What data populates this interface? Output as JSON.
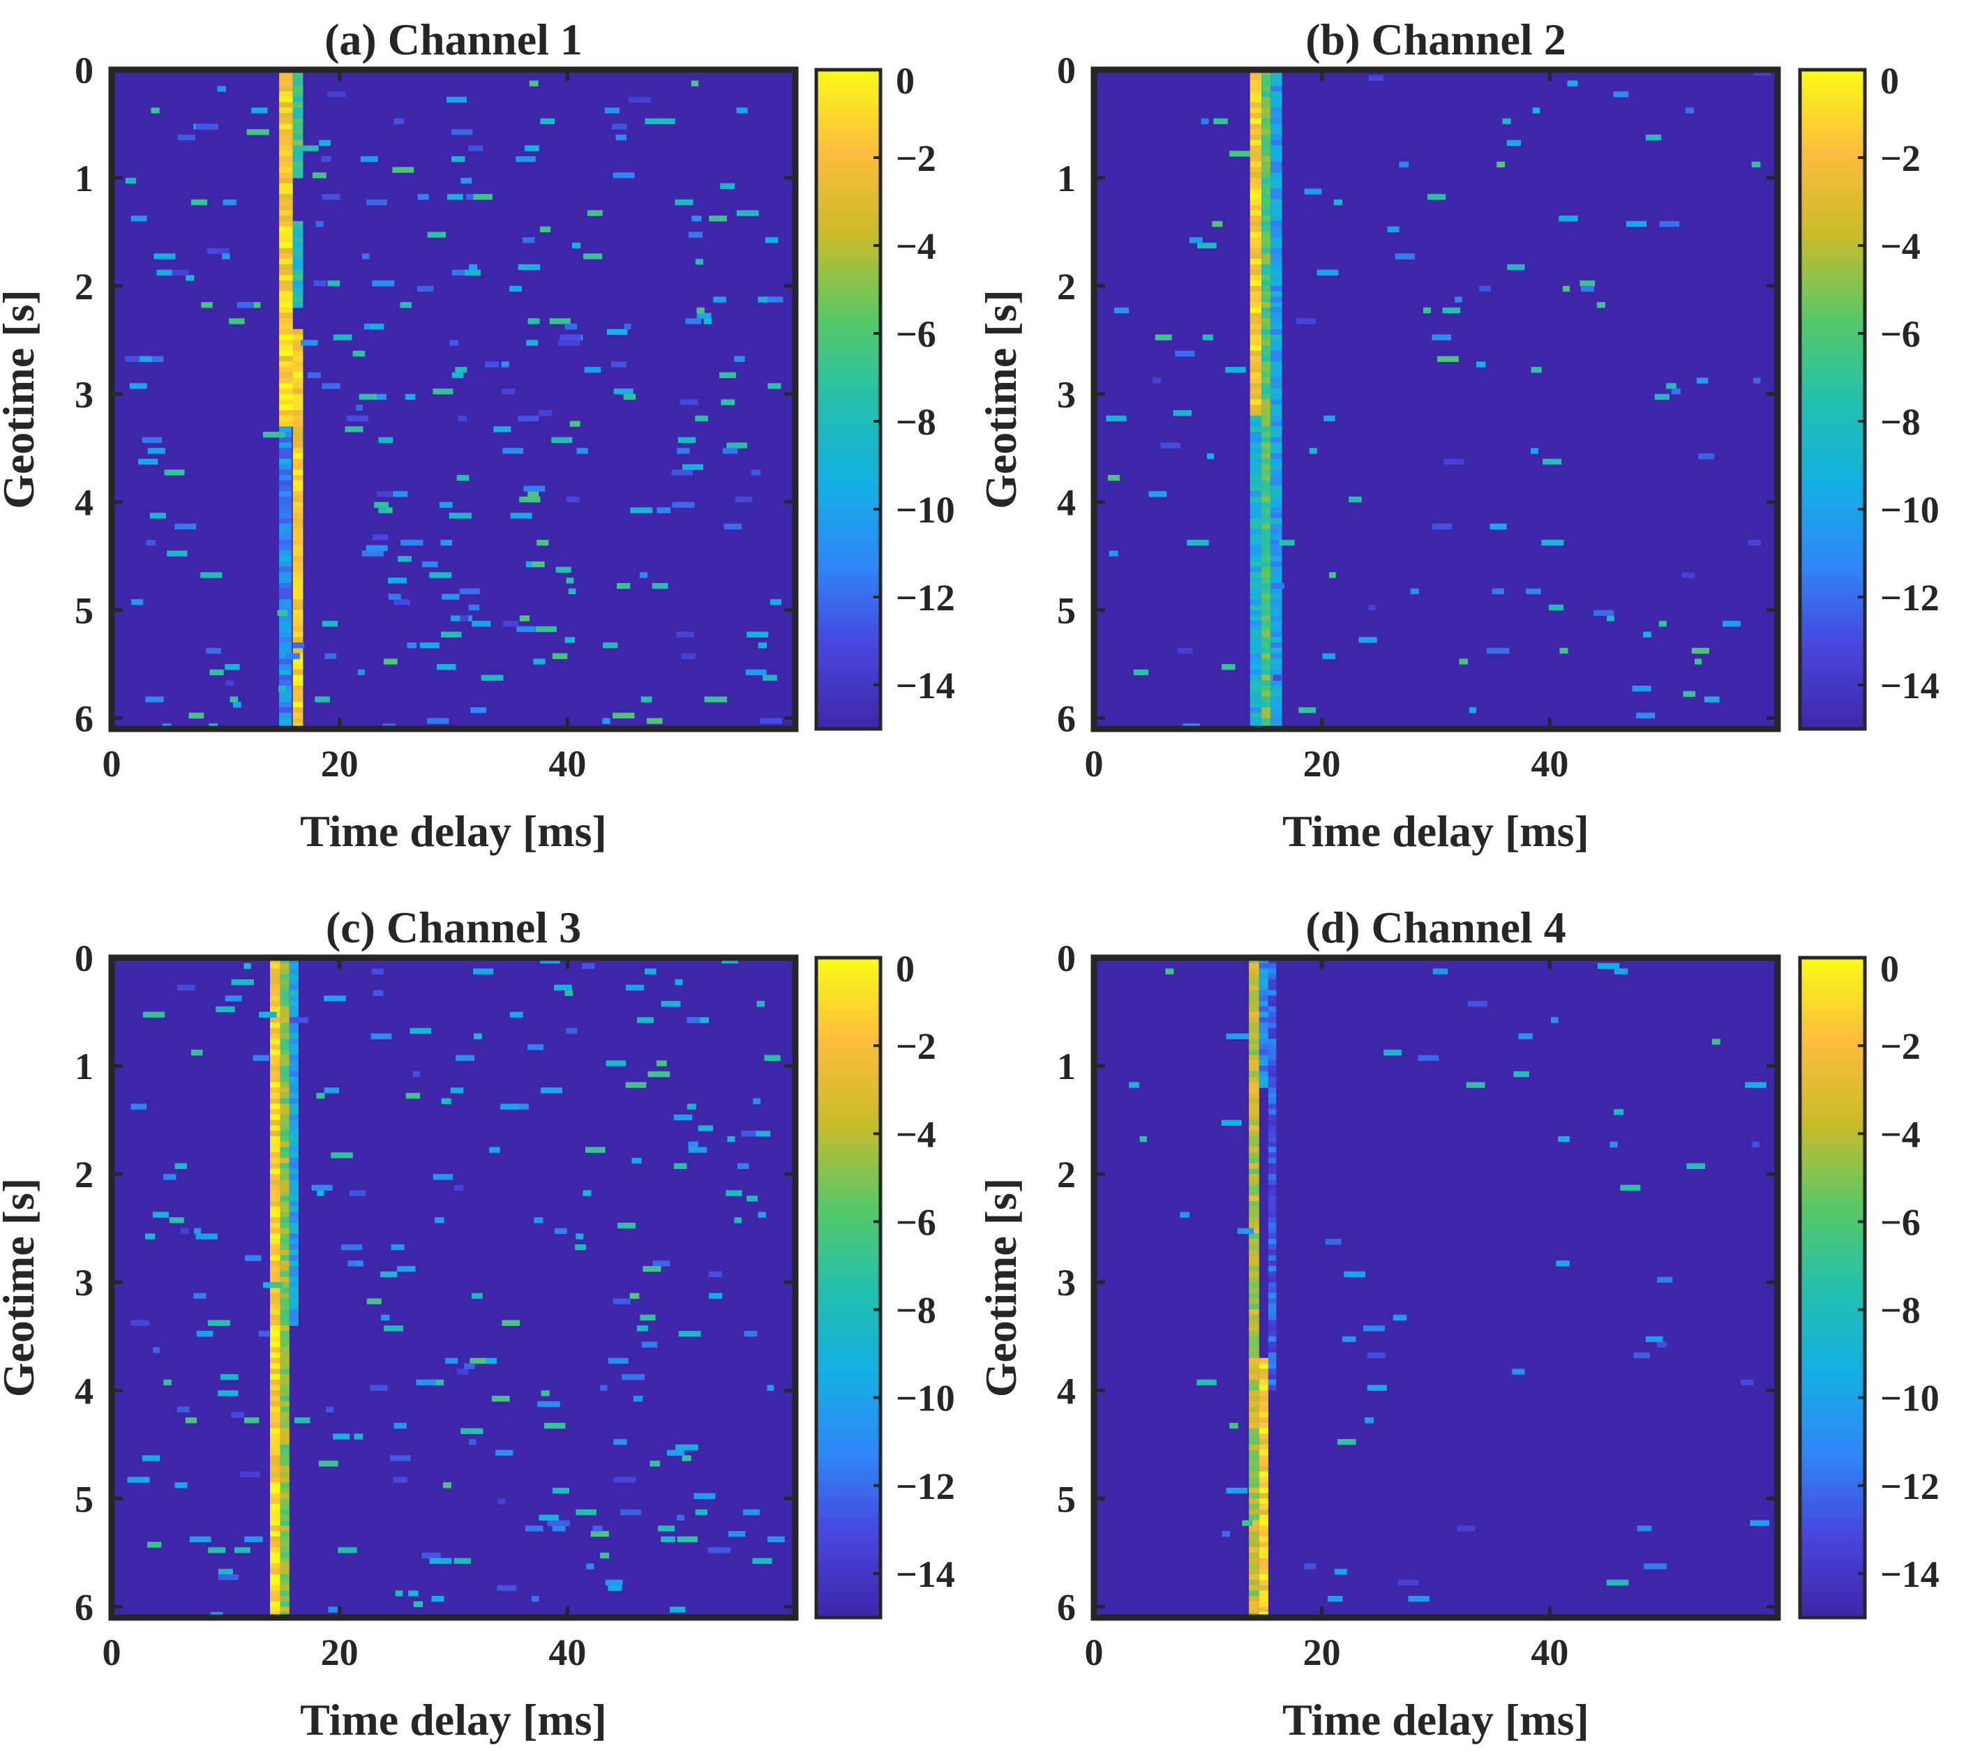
{
  "colors": {
    "colormap": [
      "#3e26a8",
      "#4745de",
      "#2e87f7",
      "#13b0e3",
      "#24c0ab",
      "#59c864",
      "#cabb29",
      "#fdbd3c",
      "#f9fb15"
    ],
    "background": "#352a87",
    "axis": "#262626"
  },
  "chart_data": [
    {
      "type": "heatmap",
      "title": "(a) Channel 1",
      "xlabel": "Time delay [ms]",
      "ylabel": "Geotime [s]",
      "xlim": [
        0,
        60
      ],
      "ylim": [
        0,
        6.1
      ],
      "xticks": [
        "0",
        "20",
        "40"
      ],
      "xtick_values": [
        0,
        20,
        40
      ],
      "yticks": [
        "0",
        "1",
        "2",
        "3",
        "4",
        "5",
        "6"
      ],
      "ytick_values": [
        0,
        1,
        2,
        3,
        4,
        5,
        6
      ],
      "clim": [
        -15,
        0
      ],
      "colorbar_ticks": [
        "0",
        "−2",
        "−4",
        "−6",
        "−8",
        "−10",
        "−12",
        "−14"
      ],
      "colorbar_tick_values": [
        0,
        -2,
        -4,
        -6,
        -8,
        -10,
        -12,
        -14
      ],
      "background_level": -15,
      "band": [
        {
          "delay_start": 14.7,
          "delay_end": 15.9,
          "geotime_start": 0.0,
          "geotime_end": 2.4,
          "level": -1.5
        },
        {
          "delay_start": 15.9,
          "delay_end": 16.8,
          "geotime_start": 0.0,
          "geotime_end": 1.0,
          "level": -6.5
        },
        {
          "delay_start": 15.9,
          "delay_end": 16.8,
          "geotime_start": 1.4,
          "geotime_end": 2.2,
          "level": -8
        },
        {
          "delay_start": 14.7,
          "delay_end": 16.0,
          "geotime_start": 2.4,
          "geotime_end": 3.3,
          "level": -1.2
        },
        {
          "delay_start": 15.9,
          "delay_end": 16.8,
          "geotime_start": 2.4,
          "geotime_end": 6.1,
          "level": -1.5
        },
        {
          "delay_start": 14.7,
          "delay_end": 15.8,
          "geotime_start": 3.3,
          "geotime_end": 6.1,
          "level": -11
        }
      ],
      "scatter_density": 260,
      "scatter_seed": 11
    },
    {
      "type": "heatmap",
      "title": "(b) Channel 2",
      "xlabel": "Time delay [ms]",
      "ylabel": "Geotime [s]",
      "xlim": [
        0,
        60
      ],
      "ylim": [
        0,
        6.1
      ],
      "xticks": [
        "0",
        "20",
        "40"
      ],
      "xtick_values": [
        0,
        20,
        40
      ],
      "yticks": [
        "0",
        "1",
        "2",
        "3",
        "4",
        "5",
        "6"
      ],
      "ytick_values": [
        0,
        1,
        2,
        3,
        4,
        5,
        6
      ],
      "clim": [
        -15,
        0
      ],
      "colorbar_ticks": [
        "0",
        "−2",
        "−4",
        "−6",
        "−8",
        "−10",
        "−12",
        "−14"
      ],
      "colorbar_tick_values": [
        0,
        -2,
        -4,
        -6,
        -8,
        -10,
        -12,
        -14
      ],
      "background_level": -15,
      "band": [
        {
          "delay_start": 13.7,
          "delay_end": 14.7,
          "geotime_start": 0.0,
          "geotime_end": 3.2,
          "level": -1.5
        },
        {
          "delay_start": 13.7,
          "delay_end": 14.7,
          "geotime_start": 3.2,
          "geotime_end": 6.1,
          "level": -9
        },
        {
          "delay_start": 14.7,
          "delay_end": 15.5,
          "geotime_start": 0.0,
          "geotime_end": 6.1,
          "level": -6
        },
        {
          "delay_start": 15.5,
          "delay_end": 16.5,
          "geotime_start": 0.0,
          "geotime_end": 6.1,
          "level": -10
        }
      ],
      "scatter_density": 110,
      "scatter_seed": 23
    },
    {
      "type": "heatmap",
      "title": "(c) Channel 3",
      "xlabel": "Time delay [ms]",
      "ylabel": "Geotime [s]",
      "xlim": [
        0,
        60
      ],
      "ylim": [
        0,
        6.1
      ],
      "xticks": [
        "0",
        "20",
        "40"
      ],
      "xtick_values": [
        0,
        20,
        40
      ],
      "yticks": [
        "0",
        "1",
        "2",
        "3",
        "4",
        "5",
        "6"
      ],
      "ytick_values": [
        0,
        1,
        2,
        3,
        4,
        5,
        6
      ],
      "clim": [
        -15,
        0
      ],
      "colorbar_ticks": [
        "0",
        "−2",
        "−4",
        "−6",
        "−8",
        "−10",
        "−12",
        "−14"
      ],
      "colorbar_tick_values": [
        0,
        -2,
        -4,
        -6,
        -8,
        -10,
        -12,
        -14
      ],
      "background_level": -15,
      "band": [
        {
          "delay_start": 13.9,
          "delay_end": 14.8,
          "geotime_start": 0.0,
          "geotime_end": 6.1,
          "level": -1.3
        },
        {
          "delay_start": 14.8,
          "delay_end": 15.6,
          "geotime_start": 0.0,
          "geotime_end": 6.1,
          "level": -5
        },
        {
          "delay_start": 15.6,
          "delay_end": 16.4,
          "geotime_start": 0.0,
          "geotime_end": 3.4,
          "level": -10
        }
      ],
      "scatter_density": 230,
      "scatter_seed": 37
    },
    {
      "type": "heatmap",
      "title": "(d) Channel 4",
      "xlabel": "Time delay [ms]",
      "ylabel": "Geotime [s]",
      "xlim": [
        0,
        60
      ],
      "ylim": [
        0,
        6.1
      ],
      "xticks": [
        "0",
        "20",
        "40"
      ],
      "xtick_values": [
        0,
        20,
        40
      ],
      "yticks": [
        "0",
        "1",
        "2",
        "3",
        "4",
        "5",
        "6"
      ],
      "ytick_values": [
        0,
        1,
        2,
        3,
        4,
        5,
        6
      ],
      "clim": [
        -15,
        0
      ],
      "colorbar_ticks": [
        "0",
        "−2",
        "−4",
        "−6",
        "−8",
        "−10",
        "−12",
        "−14"
      ],
      "colorbar_tick_values": [
        0,
        -2,
        -4,
        -6,
        -8,
        -10,
        -12,
        -14
      ],
      "background_level": -15,
      "band": [
        {
          "delay_start": 13.6,
          "delay_end": 14.5,
          "geotime_start": 0.0,
          "geotime_end": 6.1,
          "level": -4
        },
        {
          "delay_start": 14.5,
          "delay_end": 15.3,
          "geotime_start": 0.0,
          "geotime_end": 1.2,
          "level": -11
        },
        {
          "delay_start": 14.5,
          "delay_end": 15.3,
          "geotime_start": 3.7,
          "geotime_end": 6.1,
          "level": -1.5
        },
        {
          "delay_start": 15.3,
          "delay_end": 16.0,
          "geotime_start": 0.0,
          "geotime_end": 4.0,
          "level": -12.5
        }
      ],
      "scatter_density": 60,
      "scatter_seed": 51
    }
  ]
}
